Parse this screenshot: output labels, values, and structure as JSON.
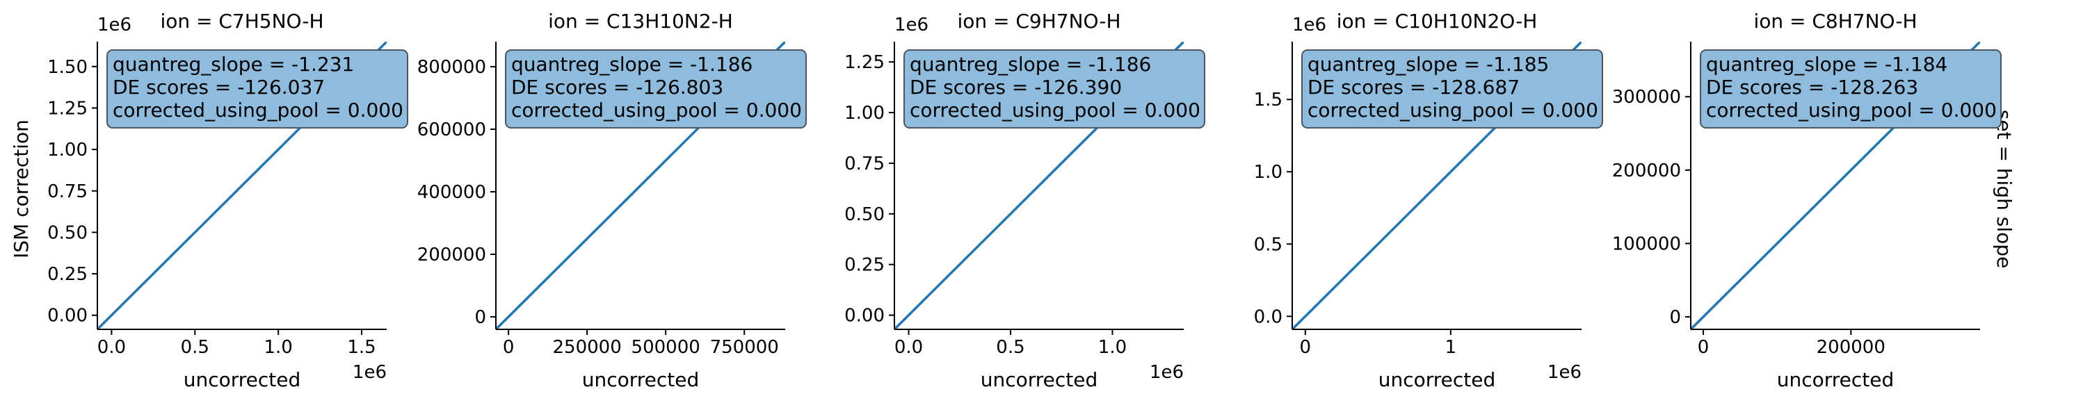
{
  "figure": {
    "ylabel": "ISM correction",
    "xlabel": "uncorrected",
    "row_label": "set = high slope",
    "colors": {
      "line": "#1f77b4",
      "box_fill": "#8fbbdc",
      "box_edge": "#4a5561"
    }
  },
  "chart_data": [
    {
      "type": "line",
      "title": "ion = C7H5NO-H",
      "xlabel": "uncorrected",
      "ylabel": "ISM correction",
      "xlim": [
        -0.085,
        1.65
      ],
      "ylim": [
        -0.085,
        1.65
      ],
      "x_ticks": [
        0.0,
        0.5,
        1.0,
        1.5
      ],
      "x_tick_labels": [
        "0.0",
        "0.5",
        "1.0",
        "1.5"
      ],
      "x_offset": "1e6",
      "y_ticks": [
        0.0,
        0.25,
        0.5,
        0.75,
        1.0,
        1.25,
        1.5
      ],
      "y_tick_labels": [
        "0.00",
        "0.25",
        "0.50",
        "0.75",
        "1.00",
        "1.25",
        "1.50"
      ],
      "y_offset": "1e6",
      "series": [
        {
          "x": [
            -0.085,
            1.65
          ],
          "y": [
            -0.085,
            1.65
          ]
        }
      ],
      "annotation": [
        "quantreg_slope = -1.231",
        "DE scores = -126.037",
        "corrected_using_pool = 0.000"
      ]
    },
    {
      "type": "line",
      "title": "ion = C13H10N2-H",
      "xlabel": "uncorrected",
      "ylabel": "",
      "xlim": [
        -40000,
        880000
      ],
      "ylim": [
        -40000,
        880000
      ],
      "x_ticks": [
        0,
        250000,
        500000,
        750000
      ],
      "x_tick_labels": [
        "0",
        "250000",
        "500000",
        "750000"
      ],
      "x_offset": "",
      "y_ticks": [
        0,
        200000,
        400000,
        600000,
        800000
      ],
      "y_tick_labels": [
        "0",
        "200000",
        "400000",
        "600000",
        "800000"
      ],
      "y_offset": "",
      "series": [
        {
          "x": [
            -40000,
            880000
          ],
          "y": [
            -40000,
            880000
          ]
        }
      ],
      "annotation": [
        "quantreg_slope = -1.186",
        "DE scores = -126.803",
        "corrected_using_pool = 0.000"
      ]
    },
    {
      "type": "line",
      "title": "ion = C9H7NO-H",
      "xlabel": "uncorrected",
      "ylabel": "",
      "xlim": [
        -0.07,
        1.35
      ],
      "ylim": [
        -0.07,
        1.35
      ],
      "x_ticks": [
        0.0,
        0.5,
        1.0
      ],
      "x_tick_labels": [
        "0.0",
        "0.5",
        "1.0"
      ],
      "x_offset": "1e6",
      "y_ticks": [
        0.0,
        0.25,
        0.5,
        0.75,
        1.0,
        1.25
      ],
      "y_tick_labels": [
        "0.00",
        "0.25",
        "0.50",
        "0.75",
        "1.00",
        "1.25"
      ],
      "y_offset": "1e6",
      "series": [
        {
          "x": [
            -0.07,
            1.35
          ],
          "y": [
            -0.07,
            1.35
          ]
        }
      ],
      "annotation": [
        "quantreg_slope = -1.186",
        "DE scores = -126.390",
        "corrected_using_pool = 0.000"
      ]
    },
    {
      "type": "line",
      "title": "ion = C10H10N2O-H",
      "xlabel": "uncorrected",
      "ylabel": "",
      "xlim": [
        -0.09,
        1.9
      ],
      "ylim": [
        -0.09,
        1.9
      ],
      "x_ticks": [
        0,
        1
      ],
      "x_tick_labels": [
        "0",
        "1"
      ],
      "x_offset": "1e6",
      "y_ticks": [
        0.0,
        0.5,
        1.0,
        1.5
      ],
      "y_tick_labels": [
        "0.0",
        "0.5",
        "1.0",
        "1.5"
      ],
      "y_offset": "1e6",
      "series": [
        {
          "x": [
            -0.09,
            1.9
          ],
          "y": [
            -0.09,
            1.9
          ]
        }
      ],
      "annotation": [
        "quantreg_slope = -1.185",
        "DE scores = -128.687",
        "corrected_using_pool = 0.000"
      ]
    },
    {
      "type": "line",
      "title": "ion = C8H7NO-H",
      "xlabel": "uncorrected",
      "ylabel": "",
      "xlim": [
        -17000,
        375000
      ],
      "ylim": [
        -17000,
        375000
      ],
      "x_ticks": [
        0,
        200000
      ],
      "x_tick_labels": [
        "0",
        "200000"
      ],
      "x_offset": "",
      "y_ticks": [
        0,
        100000,
        200000,
        300000
      ],
      "y_tick_labels": [
        "0",
        "100000",
        "200000",
        "300000"
      ],
      "y_offset": "",
      "series": [
        {
          "x": [
            -17000,
            375000
          ],
          "y": [
            -17000,
            375000
          ]
        }
      ],
      "annotation": [
        "quantreg_slope = -1.184",
        "DE scores = -128.263",
        "corrected_using_pool = 0.000"
      ]
    }
  ]
}
